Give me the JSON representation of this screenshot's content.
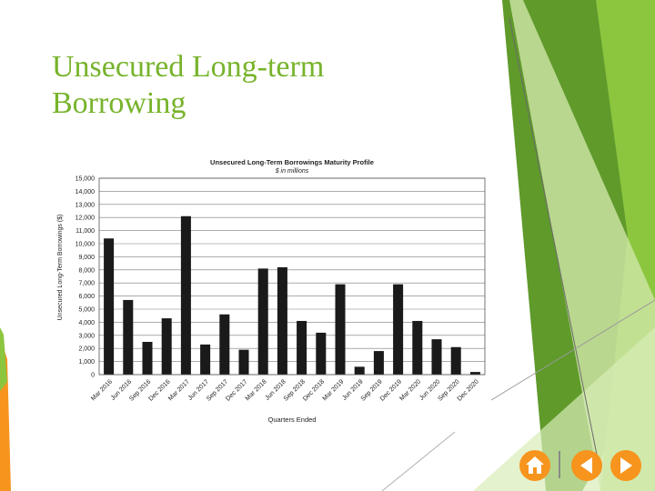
{
  "slide": {
    "title_line1": "Unsecured Long-term",
    "title_line2": "Borrowing"
  },
  "colors": {
    "title": "#77b32b",
    "bars": "#1a1a1a",
    "green_dark": "#5f9a2b",
    "green_mid": "#8cc63f",
    "green_light": "#cfe6a8",
    "nav_orange": "#f7941d"
  },
  "nav": {
    "home_icon": "home-icon",
    "prev_icon": "triangle-left-icon",
    "next_icon": "triangle-right-icon"
  },
  "chart_data": {
    "type": "bar",
    "title": "Unsecured Long-Term Borrowings Maturity Profile",
    "subtitle": "$ in millions",
    "xlabel": "Quarters Ended",
    "ylabel": "Unsecured Long-Term Borrowings ($)",
    "ylim": [
      0,
      15000
    ],
    "yticks": [
      "0",
      "1,000",
      "2,000",
      "3,000",
      "4,000",
      "5,000",
      "6,000",
      "7,000",
      "8,000",
      "9,000",
      "10,000",
      "11,000",
      "12,000",
      "13,000",
      "14,000",
      "15,000"
    ],
    "grid": true,
    "categories": [
      "Mar 2016",
      "Jun 2016",
      "Sep 2016",
      "Dec 2016",
      "Mar 2017",
      "Jun 2017",
      "Sep 2017",
      "Dec 2017",
      "Mar 2018",
      "Jun 2018",
      "Sep 2018",
      "Dec 2018",
      "Mar 2019",
      "Jun 2019",
      "Sep 2019",
      "Dec 2019",
      "Mar 2020",
      "Jun 2020",
      "Sep 2020",
      "Dec 2020"
    ],
    "values": [
      10400,
      5700,
      2500,
      4300,
      12100,
      2300,
      4600,
      1900,
      8100,
      8200,
      4100,
      3200,
      6900,
      600,
      1800,
      6900,
      4100,
      2700,
      2100,
      200
    ]
  }
}
